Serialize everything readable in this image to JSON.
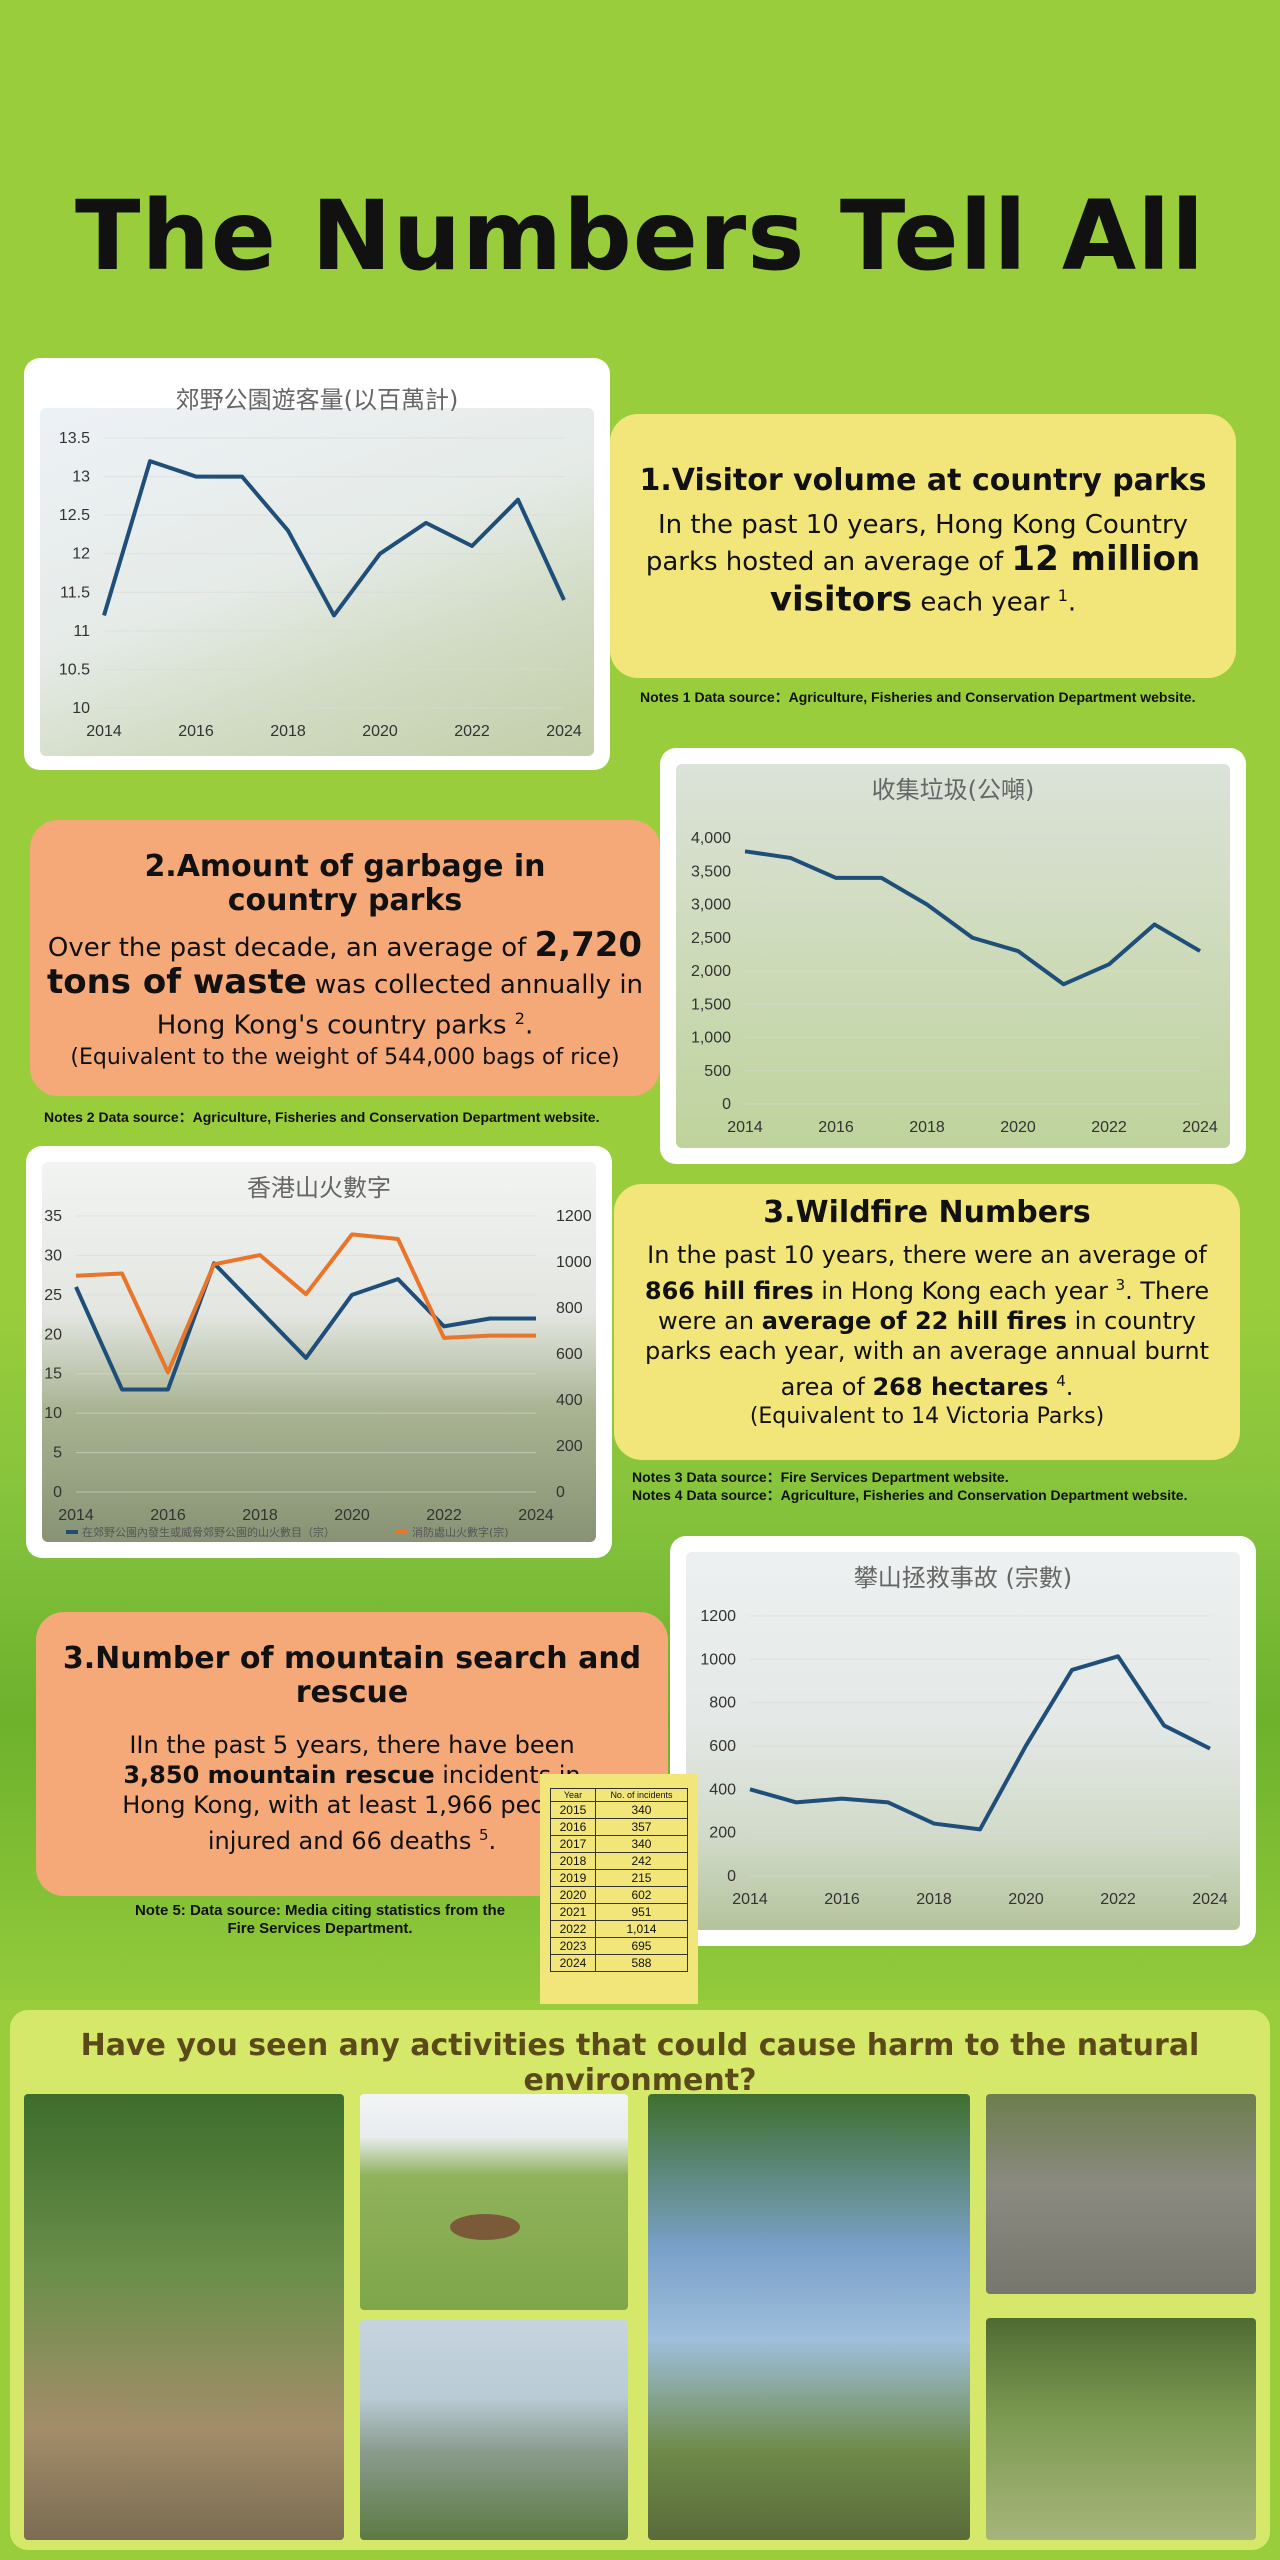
{
  "title": "The Numbers Tell All",
  "sections": {
    "visitors": {
      "heading": "1.Visitor volume at country parks",
      "text_before": "In the past 10 years, Hong Kong Country parks hosted an average of ",
      "highlight": "12 million visitors",
      "text_after": " each year ",
      "sup": "1",
      "end": ".",
      "note": "Notes 1 Data source：Agriculture, Fisheries and Conservation Department website."
    },
    "garbage": {
      "heading": "2.Amount of garbage in country parks",
      "text_before": "Over the past decade, an average of ",
      "highlight": "2,720 tons of waste",
      "text_after": " was collected annually in Hong Kong's country parks ",
      "sup": "2",
      "end": ".",
      "sub": "(Equivalent to the weight of 544,000 bags of rice)",
      "note": "Notes 2 Data source：Agriculture, Fisheries and Conservation Department website."
    },
    "wildfire": {
      "heading": "3.Wildfire Numbers",
      "t1": "In the past 10 years, there were an average of ",
      "h1": "866 hill fires",
      "t2": " in Hong Kong each year ",
      "sup1": "3",
      "t3": ". There were an ",
      "h2": "average of 22 hill fires",
      "t4": " in country parks each year, with an average annual burnt area of ",
      "h3": "268 hectares",
      "sup2": "4",
      "end": ".",
      "sub": "(Equivalent to 14 Victoria Parks)",
      "note1": "Notes 3 Data source：Fire Services Department website.",
      "note2": "Notes 4 Data source：Agriculture, Fisheries and Conservation Department website."
    },
    "rescue": {
      "heading": "3.Number of mountain search and rescue",
      "t1": "IIn the past 5 years, there have been ",
      "h1": "3,850 mountain rescue",
      "t2": " incidents in Hong Kong, with at least 1,966 people injured and 66 deaths ",
      "sup": "5",
      "end": ".",
      "note": "Note 5: Data source: Media citing statistics from the Fire Services Department.",
      "table": {
        "headers": [
          "Year",
          "No. of incidents"
        ],
        "rows": [
          [
            "2015",
            "340"
          ],
          [
            "2016",
            "357"
          ],
          [
            "2017",
            "340"
          ],
          [
            "2018",
            "242"
          ],
          [
            "2019",
            "215"
          ],
          [
            "2020",
            "602"
          ],
          [
            "2021",
            "951"
          ],
          [
            "2022",
            "1,014"
          ],
          [
            "2023",
            "695"
          ],
          [
            "2024",
            "588"
          ]
        ]
      }
    },
    "gallery": {
      "question": "Have you seen any activities that could cause harm to the natural environment?"
    }
  },
  "chart_data": [
    {
      "type": "line",
      "title": "郊野公園遊客量(以百萬計)",
      "x": [
        2014,
        2015,
        2016,
        2017,
        2018,
        2019,
        2020,
        2021,
        2022,
        2023,
        2024
      ],
      "series": [
        {
          "values": [
            11.2,
            13.2,
            13.0,
            13.0,
            12.3,
            11.2,
            12.0,
            12.4,
            12.1,
            12.7,
            11.4
          ]
        }
      ],
      "ylim": [
        10,
        13.5
      ],
      "yticks": [
        "10",
        "10.5",
        "11",
        "11.5",
        "12",
        "12.5",
        "13",
        "13.5"
      ],
      "xticks": [
        "2014",
        "2016",
        "2018",
        "2020",
        "2022",
        "2024"
      ],
      "color": "#1f4e79"
    },
    {
      "type": "line",
      "title": "收集垃圾(公噸)",
      "x": [
        2014,
        2015,
        2016,
        2017,
        2018,
        2019,
        2020,
        2021,
        2022,
        2023,
        2024
      ],
      "series": [
        {
          "values": [
            3800,
            3700,
            3400,
            3400,
            3000,
            2500,
            2300,
            1800,
            2100,
            2700,
            2300
          ]
        }
      ],
      "ylim": [
        0,
        4000
      ],
      "yticks": [
        "0",
        "500",
        "1,000",
        "1,500",
        "2,000",
        "2,500",
        "3,000",
        "3,500",
        "4,000"
      ],
      "xticks": [
        "2014",
        "2016",
        "2018",
        "2020",
        "2022",
        "2024"
      ],
      "color": "#1f4e79"
    },
    {
      "type": "line",
      "title": "香港山火數字",
      "x": [
        2014,
        2015,
        2016,
        2017,
        2018,
        2019,
        2020,
        2021,
        2022,
        2023,
        2024
      ],
      "series": [
        {
          "name": "在郊野公園內發生或威脅郊野公園的山火數目（宗）",
          "axis": "left",
          "values": [
            26,
            13,
            13,
            29,
            23,
            17,
            25,
            27,
            21,
            22,
            22
          ],
          "color": "#1f4e79"
        },
        {
          "name": "消防處山火數字(宗)",
          "axis": "right",
          "values": [
            940,
            950,
            520,
            990,
            1030,
            860,
            1120,
            1100,
            670,
            680,
            680
          ],
          "color": "#e8752a"
        }
      ],
      "ylim": [
        0,
        35
      ],
      "y2lim": [
        0,
        1200
      ],
      "yticks": [
        "0",
        "5",
        "10",
        "15",
        "20",
        "25",
        "30",
        "35"
      ],
      "y2ticks": [
        "0",
        "200",
        "400",
        "600",
        "800",
        "1000",
        "1200"
      ],
      "xticks": [
        "2014",
        "2016",
        "2018",
        "2020",
        "2022",
        "2024"
      ],
      "legend": "bottom"
    },
    {
      "type": "line",
      "title": "攀山拯救事故 (宗數)",
      "x": [
        2014,
        2015,
        2016,
        2017,
        2018,
        2019,
        2020,
        2021,
        2022,
        2023,
        2024
      ],
      "series": [
        {
          "values": [
            400,
            340,
            357,
            340,
            242,
            215,
            602,
            951,
            1014,
            695,
            588
          ]
        }
      ],
      "ylim": [
        0,
        1200
      ],
      "yticks": [
        "0",
        "200",
        "400",
        "600",
        "800",
        "1000",
        "1200"
      ],
      "xticks": [
        "2014",
        "2016",
        "2018",
        "2020",
        "2022",
        "2024"
      ],
      "color": "#1f4e79"
    }
  ]
}
